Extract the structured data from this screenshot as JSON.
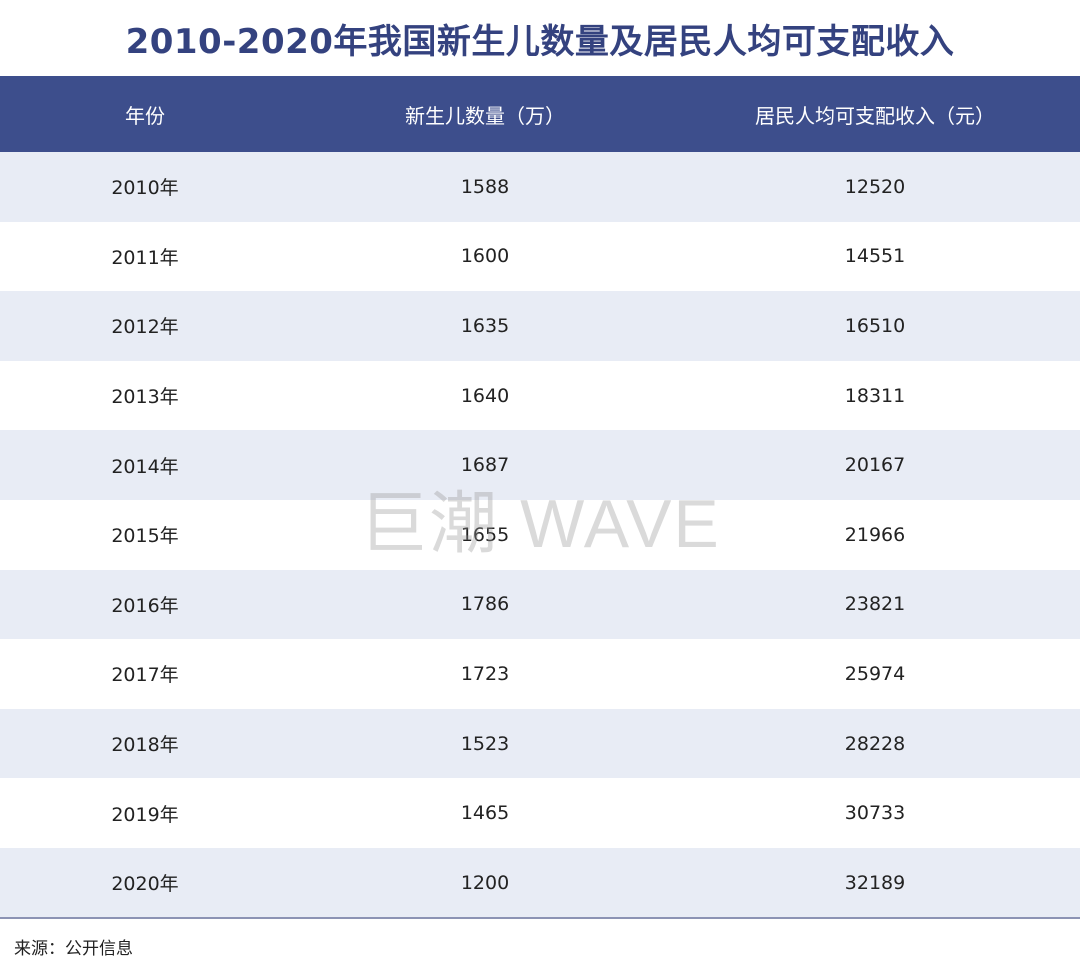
{
  "title": "2010-2020年我国新生儿数量及居民人均可支配收入",
  "watermark": "巨潮 WAVE",
  "source": "来源：公开信息",
  "colors": {
    "header_bg": "#3d4e8c",
    "title": "#34427f",
    "stripe": "#e8ecf5"
  },
  "chart_data": {
    "type": "table",
    "title": "2010-2020年我国新生儿数量及居民人均可支配收入",
    "columns": [
      "年份",
      "新生儿数量（万）",
      "居民人均可支配收入（元）"
    ],
    "rows": [
      [
        "2010年",
        "1588",
        "12520"
      ],
      [
        "2011年",
        "1600",
        "14551"
      ],
      [
        "2012年",
        "1635",
        "16510"
      ],
      [
        "2013年",
        "1640",
        "18311"
      ],
      [
        "2014年",
        "1687",
        "20167"
      ],
      [
        "2015年",
        "1655",
        "21966"
      ],
      [
        "2016年",
        "1786",
        "23821"
      ],
      [
        "2017年",
        "1723",
        "25974"
      ],
      [
        "2018年",
        "1523",
        "28228"
      ],
      [
        "2019年",
        "1465",
        "30733"
      ],
      [
        "2020年",
        "1200",
        "32189"
      ]
    ]
  }
}
